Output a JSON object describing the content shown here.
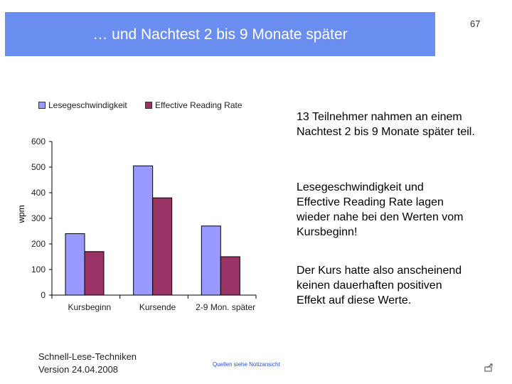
{
  "header": {
    "title": "… und Nachtest 2 bis 9 Monate später",
    "page_number": "67"
  },
  "chart_data": {
    "type": "bar",
    "categories": [
      "Kursbeginn",
      "Kursende",
      "2-9 Mon. später"
    ],
    "series": [
      {
        "name": "Lesegeschwindigkeit",
        "values": [
          240,
          505,
          270
        ],
        "color": "#9999ff"
      },
      {
        "name": "Effective Reading Rate",
        "values": [
          170,
          380,
          150
        ],
        "color": "#993366"
      }
    ],
    "ylabel": "wpm",
    "yticks": [
      0,
      100,
      200,
      300,
      400,
      500,
      600
    ],
    "ylim": [
      0,
      600
    ],
    "grid": false,
    "legend_position": "top"
  },
  "side_text": {
    "p1": "13 Teilnehmer nahmen an einem Nachtest 2 bis 9 Monate später teil.",
    "p2": "Lesegeschwindigkeit und Effective Reading Rate lagen wieder nahe bei den Werten vom Kursbeginn!",
    "p3": "Der Kurs hatte also anscheinend keinen dauerhaften positiven Effekt auf diese Werte."
  },
  "footer": {
    "line1": "Schnell-Lese-Techniken",
    "line2": "Version 24.04.2008",
    "notes": "Quellen siehe Notizansicht"
  },
  "icons": {
    "corner": "return-arrow-icon"
  }
}
